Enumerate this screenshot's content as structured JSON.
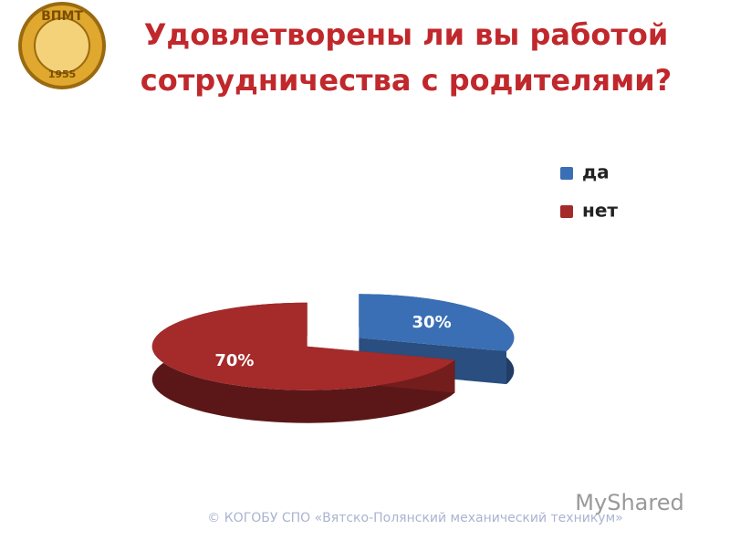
{
  "chart_data": {
    "type": "pie",
    "title": [
      "Удовлетворены ли вы работой",
      "сотрудничества с родителями?"
    ],
    "categories": [
      "да",
      "нет"
    ],
    "values": [
      30,
      70
    ],
    "value_labels": [
      "30%",
      "70%"
    ],
    "colors": [
      "#3A6FB5",
      "#A52A2A"
    ],
    "legend": "top-right"
  },
  "logo": {
    "text": "ВПМТ",
    "year": "1955"
  },
  "footer": "© КОГОБУ СПО «Вятско-Полянский механический техникум»",
  "watermark": "MyShared"
}
